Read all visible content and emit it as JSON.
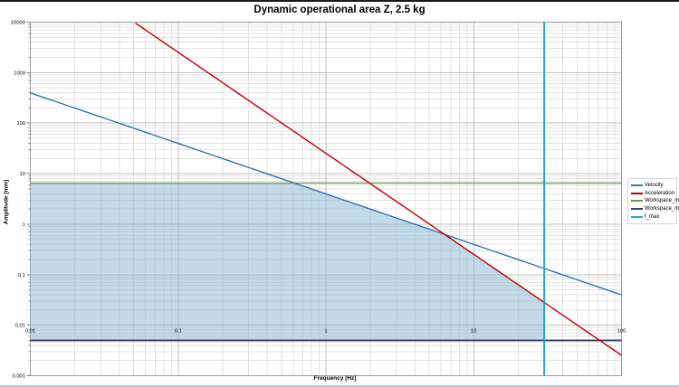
{
  "title": "Dynamic operational area Z, 2.5 kg",
  "axes": {
    "x_label": "Frequency [Hz]",
    "y_label": "Amplitude [mm]"
  },
  "chart_data": {
    "type": "line",
    "scale": "log-log",
    "title": "Dynamic operational area Z, 2.5 kg",
    "xlabel": "Frequency [Hz]",
    "ylabel": "Amplitude [mm]",
    "xlim": [
      0.01,
      100
    ],
    "ylim": [
      0.001,
      10000
    ],
    "x_tick_values": [
      0.01,
      0.1,
      1,
      10,
      100
    ],
    "x_tick_labels": [
      "0,01",
      "0,1",
      "1",
      "10",
      "100"
    ],
    "y_tick_values": [
      10000,
      1000,
      100,
      10,
      1,
      0.1,
      0.01,
      0.001
    ],
    "y_tick_labels": [
      "10000",
      "1000",
      "100",
      "10",
      "1",
      "0,1",
      "0,01",
      "0,001"
    ],
    "grid": "major+minor",
    "legend_position": "right",
    "series": [
      {
        "name": "Velocity",
        "type": "velocity_limit",
        "formula": "A = v / (2*pi*f)",
        "velocity_mm_per_s": 25,
        "color": "#2E75B6",
        "width": 1.4,
        "endpoints": [
          {
            "f": 0.01,
            "A": 397.9
          },
          {
            "f": 100,
            "A": 0.0398
          }
        ]
      },
      {
        "name": "Acceleration",
        "type": "acceleration_limit",
        "formula": "A = a / (2*pi*f)^2",
        "acceleration_mm_per_s2": 1000,
        "color": "#C00000",
        "width": 1.4,
        "endpoints": [
          {
            "f": 0.0503,
            "A": 10000
          },
          {
            "f": 100,
            "A": 0.00253
          }
        ]
      },
      {
        "name": "Workspace_max",
        "type": "horizontal",
        "amplitude_mm": 6.5,
        "color": "#6A9C3F",
        "width": 1.3
      },
      {
        "name": "Workspace_min",
        "type": "horizontal",
        "amplitude_mm": 0.005,
        "color": "#3F3F70",
        "width": 2
      },
      {
        "name": "f_max",
        "type": "vertical",
        "frequency_hz": 30,
        "color": "#26A8C2",
        "width": 2
      }
    ],
    "shaded_area": {
      "description": "operational area = min(Velocity, Acceleration, Workspace_max) upper bound, Workspace_min lower bound, f <= f_max",
      "fill_color": "#9DC3DA",
      "opacity": 0.62
    }
  },
  "colors": {
    "major_grid": "#C0C0C0",
    "minor_grid": "#E3E3E3",
    "plot_border": "#9B9B9B",
    "axis": "#808080"
  }
}
